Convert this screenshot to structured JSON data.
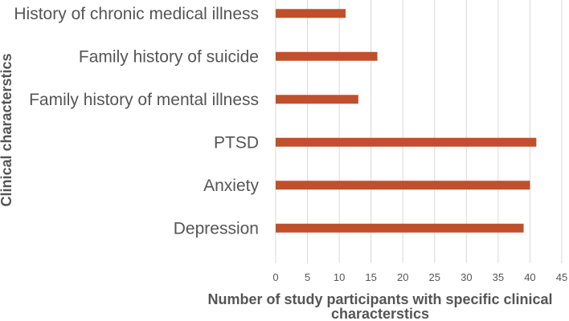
{
  "chart_data": {
    "type": "bar",
    "orientation": "horizontal",
    "categories": [
      "History of chronic medical illness",
      "Family history of suicide",
      "Family history of mental illness",
      "PTSD",
      "Anxiety",
      "Depression"
    ],
    "values": [
      11,
      16,
      13,
      41,
      40,
      39
    ],
    "xlabel_lines": [
      "Number of study participants with specific clinical",
      "characterstics"
    ],
    "ylabel": "Clinical characterstics",
    "xlim": [
      0,
      45
    ],
    "xticks": [
      0,
      5,
      10,
      15,
      20,
      25,
      30,
      35,
      40,
      45
    ],
    "grid": true,
    "bar_color": "#c0502b",
    "grid_color": "#d9d9d9"
  }
}
